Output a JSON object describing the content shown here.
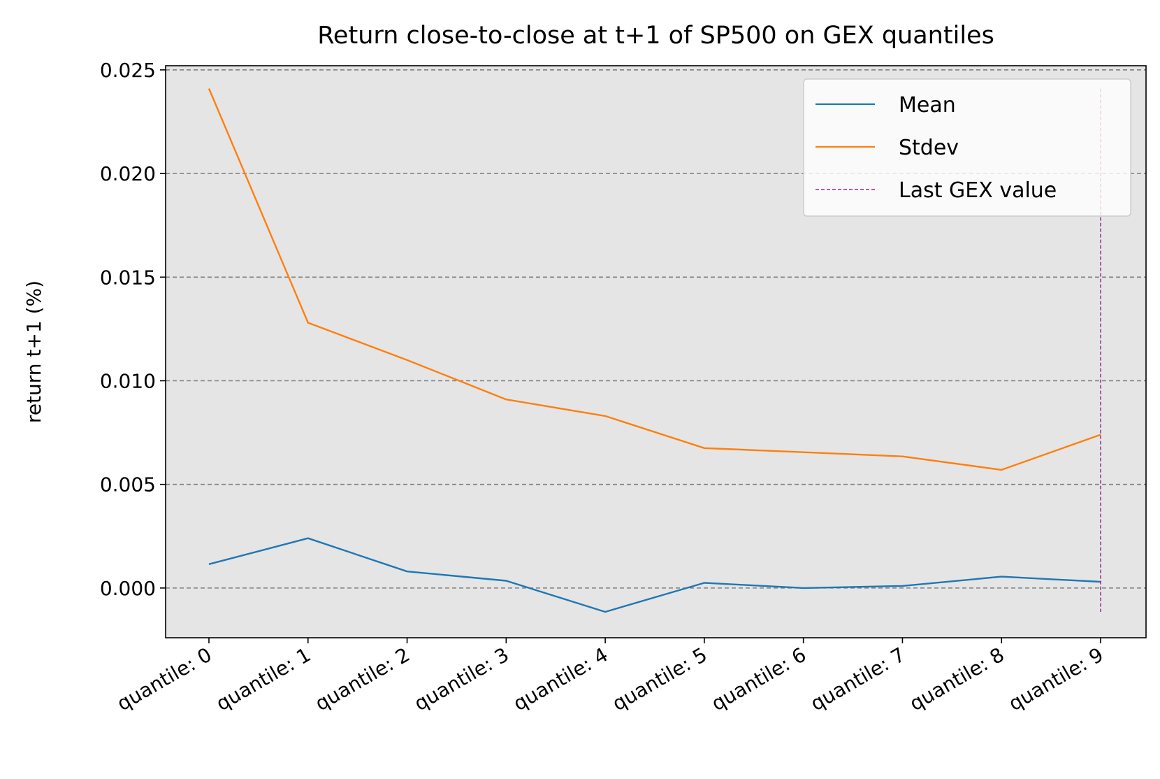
{
  "chart_data": {
    "type": "line",
    "title": "Return close-to-close at t+1 of SP500 on GEX quantiles",
    "xlabel": "",
    "ylabel": "return t+1 (%)",
    "categories": [
      "quantile: 0",
      "quantile: 1",
      "quantile: 2",
      "quantile: 3",
      "quantile: 4",
      "quantile: 5",
      "quantile: 6",
      "quantile: 7",
      "quantile: 8",
      "quantile: 9"
    ],
    "series": [
      {
        "name": "Mean",
        "color": "#1f77b4",
        "values": [
          0.00115,
          0.0024,
          0.0008,
          0.00035,
          -0.00115,
          0.00025,
          0.0,
          0.0001,
          0.00055,
          0.0003
        ]
      },
      {
        "name": "Stdev",
        "color": "#ff7f0e",
        "values": [
          0.0241,
          0.0128,
          0.011,
          0.0091,
          0.0083,
          0.00675,
          0.00655,
          0.00635,
          0.0057,
          0.0074
        ]
      }
    ],
    "vline": {
      "name": "Last GEX value",
      "color": "#800080",
      "x_category": "quantile: 9",
      "y_range": [
        -0.00115,
        0.0241
      ]
    },
    "ylim": [
      -0.0024,
      0.0252
    ],
    "yticks": [
      0.0,
      0.005,
      0.01,
      0.015,
      0.02,
      0.025
    ],
    "ytick_labels": [
      "0.000",
      "0.005",
      "0.010",
      "0.015",
      "0.020",
      "0.025"
    ],
    "grid": "y-dashed",
    "legend_position": "top-right",
    "background_color": "#e5e5e5"
  }
}
